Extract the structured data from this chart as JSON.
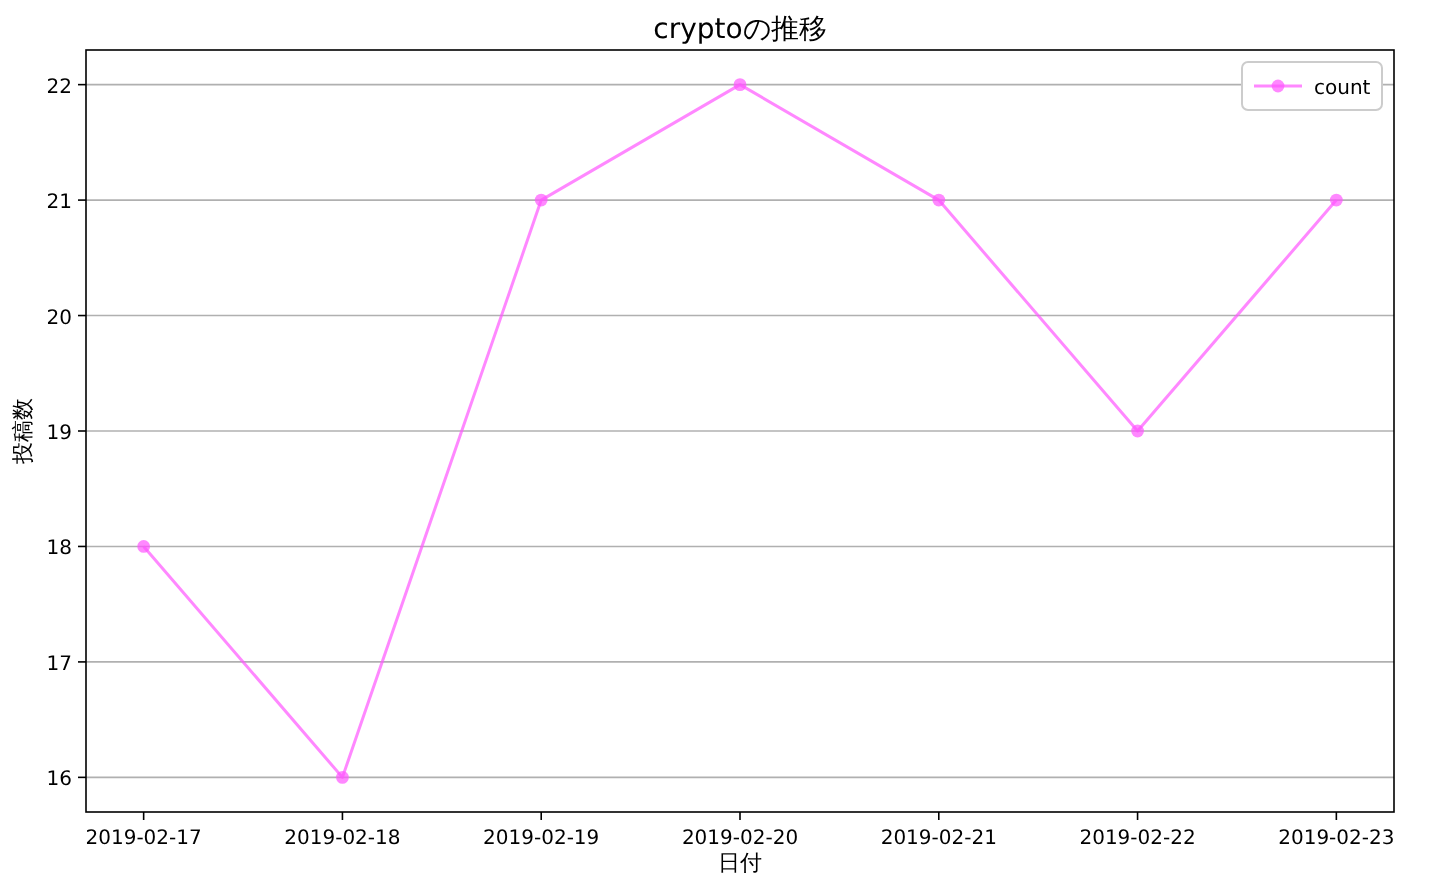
{
  "chart_data": {
    "type": "line",
    "title": "cryptoの推移",
    "xlabel": "日付",
    "ylabel": "投稿数",
    "categories": [
      "2019-02-17",
      "2019-02-18",
      "2019-02-19",
      "2019-02-20",
      "2019-02-21",
      "2019-02-22",
      "2019-02-23"
    ],
    "series": [
      {
        "name": "count",
        "color": "#ff55ff",
        "values": [
          18,
          16,
          21,
          22,
          21,
          19,
          21
        ]
      }
    ],
    "ylim": [
      15.7,
      22.3
    ],
    "yticks": [
      16,
      17,
      18,
      19,
      20,
      21,
      22
    ],
    "grid": "y",
    "legend": "top right",
    "marker": "circle",
    "line_style": "solid"
  }
}
